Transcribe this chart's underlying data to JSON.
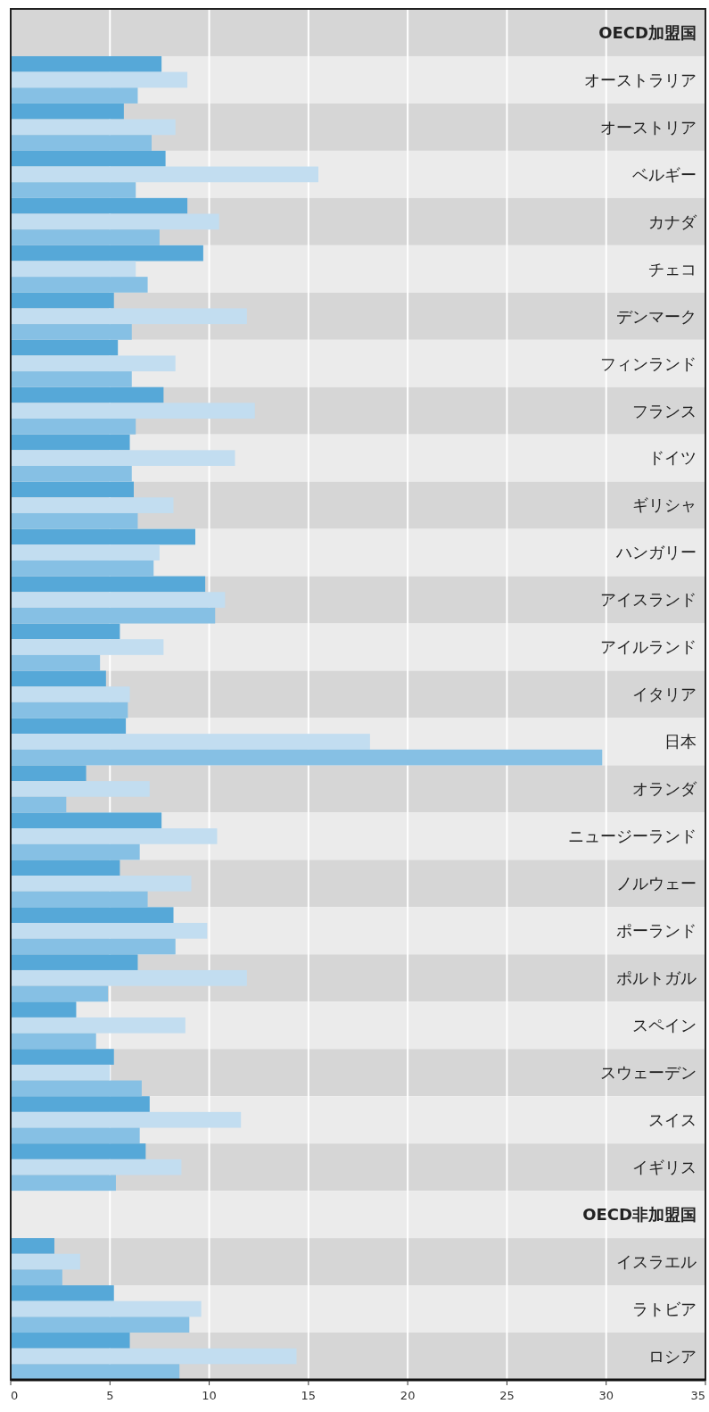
{
  "chart_data": {
    "type": "bar",
    "orientation": "horizontal",
    "categories": [
      "OECD加盟国",
      "オーストラリア",
      "オーストリア",
      "ベルギー",
      "カナダ",
      "チェコ",
      "デンマーク",
      "フィンランド",
      "フランス",
      "ドイツ",
      "ギリシャ",
      "ハンガリー",
      "アイスランド",
      "アイルランド",
      "イタリア",
      "日本",
      "オランダ",
      "ニュージーランド",
      "ノルウェー",
      "ポーランド",
      "ポルトガル",
      "スペイン",
      "スウェーデン",
      "スイス",
      "イギリス",
      "OECD非加盟国",
      "イスラエル",
      "ラトビア",
      "ロシア"
    ],
    "series": [
      {
        "color": "#56a8d8",
        "values": [
          null,
          7.6,
          5.7,
          7.8,
          8.9,
          9.7,
          5.2,
          5.4,
          7.7,
          6.0,
          6.2,
          9.3,
          9.8,
          5.5,
          4.8,
          5.8,
          3.8,
          7.6,
          5.5,
          8.2,
          6.4,
          3.3,
          5.2,
          7.0,
          6.8,
          null,
          2.2,
          5.2,
          6.0
        ]
      },
      {
        "color": "#c2ddf0",
        "values": [
          null,
          8.9,
          8.3,
          15.5,
          10.5,
          6.3,
          11.9,
          8.3,
          12.3,
          11.3,
          8.2,
          7.5,
          10.8,
          7.7,
          6.0,
          18.1,
          7.0,
          10.4,
          9.1,
          9.9,
          11.9,
          8.8,
          5.0,
          11.6,
          8.6,
          null,
          3.5,
          9.6,
          14.4
        ]
      },
      {
        "color": "#86c0e4",
        "values": [
          null,
          6.4,
          7.1,
          6.3,
          7.5,
          6.9,
          6.1,
          6.1,
          6.3,
          6.1,
          6.4,
          7.2,
          10.3,
          4.5,
          5.9,
          29.8,
          2.8,
          6.5,
          6.9,
          8.3,
          4.9,
          4.3,
          6.6,
          6.5,
          5.3,
          null,
          2.6,
          9.0,
          8.5
        ]
      }
    ],
    "xlim": [
      0,
      35
    ],
    "xticks": [
      0,
      5,
      10,
      15,
      20,
      25,
      30,
      35
    ],
    "grid": "x",
    "legend": false
  }
}
